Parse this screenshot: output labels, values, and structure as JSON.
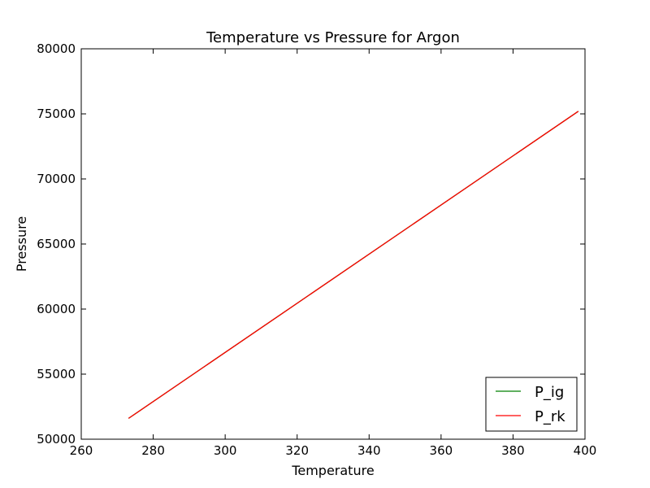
{
  "chart_data": {
    "type": "line",
    "title": "Temperature vs Pressure for Argon",
    "xlabel": "Temperature",
    "ylabel": "Pressure",
    "xlim": [
      260,
      400
    ],
    "ylim": [
      50000,
      80000
    ],
    "xticks": [
      260,
      280,
      300,
      320,
      340,
      360,
      380,
      400
    ],
    "yticks": [
      50000,
      55000,
      60000,
      65000,
      70000,
      75000,
      80000
    ],
    "grid": false,
    "legend_position": "lower-right",
    "series": [
      {
        "name": "P_ig",
        "color": "#008000",
        "x": [
          273.15,
          398.15
        ],
        "y": [
          51600,
          75200
        ]
      },
      {
        "name": "P_rk",
        "color": "#ff0000",
        "x": [
          273.15,
          398.15
        ],
        "y": [
          51600,
          75200
        ]
      }
    ]
  }
}
